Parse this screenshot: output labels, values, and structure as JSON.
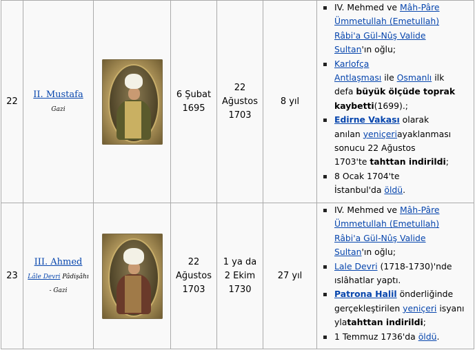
{
  "rows": [
    {
      "number": "22",
      "name": "II. Mustafa",
      "subtitle_plain": "Gazi",
      "start_line1": "6 Şubat",
      "start_line2": "1695",
      "end_line1": "22",
      "end_line2": "Ağustos",
      "end_line3": "1703",
      "duration": "8 yıl",
      "b1": {
        "t1": "IV. Mehmed ve ",
        "l1": "Mâh-Pâre",
        "l2": "Ümmetullah (Emetullah)",
        "l3": "Râbi'a Gül-Nûş Valide",
        "l4": "Sultan",
        "t2": "'ın oğlu;"
      },
      "b2": {
        "l1": "Karlofça",
        "l2": "Antlaşması",
        "t1": " ile ",
        "l3": "Osmanlı",
        "t2": " ilk",
        "t3": "defa ",
        "bold1": "büyük ölçüde toprak",
        "bold2": "kaybetti",
        "t4": "(1699).;"
      },
      "b3": {
        "blink": "Edirne Vakası",
        "t1": " olarak",
        "t2": "anılan ",
        "l1": "yeniçeri",
        "t3": "ayaklanması",
        "t4": "sonucu 22 Ağustos",
        "t5": "1703'te ",
        "bold": "tahttan indirildi",
        "t6": ";"
      },
      "b4": {
        "t1": "8 Ocak 1704'te",
        "t2": "İstanbul'da ",
        "l1": "öldü",
        "t3": "."
      }
    },
    {
      "number": "23",
      "name": "III. Ahmed",
      "subtitle_link": "Lâle Devri",
      "subtitle_plain": " Pâdişâhı",
      "subtitle_line2": "- Gazi",
      "start_line1": "22",
      "start_line2": "Ağustos",
      "start_line3": "1703",
      "end_line1": "1 ya da",
      "end_line2": "2 Ekim",
      "end_line3": "1730",
      "duration": "27 yıl",
      "b1": {
        "t1": "IV. Mehmed ve ",
        "l1": "Mâh-Pâre",
        "l2": "Ümmetullah (Emetullah)",
        "l3": "Râbi'a Gül-Nûş Valide",
        "l4": "Sultan",
        "t2": "'ın oğlu;"
      },
      "b2": {
        "l1": "Lale Devri",
        "t1": " (1718-1730)'nde",
        "t2": "ıslâhatlar yaptı."
      },
      "b3": {
        "blink": "Patrona Halil",
        "t1": " önderliğinde",
        "t2": "gerçekleştirilen ",
        "l1": "yeniçeri",
        "t3": " isyanı",
        "t4": "yla",
        "bold": "tahttan indirildi",
        "t5": ";"
      },
      "b4": {
        "t1": "1 Temmuz 1736'da ",
        "l1": "öldü",
        "t2": "."
      }
    }
  ]
}
